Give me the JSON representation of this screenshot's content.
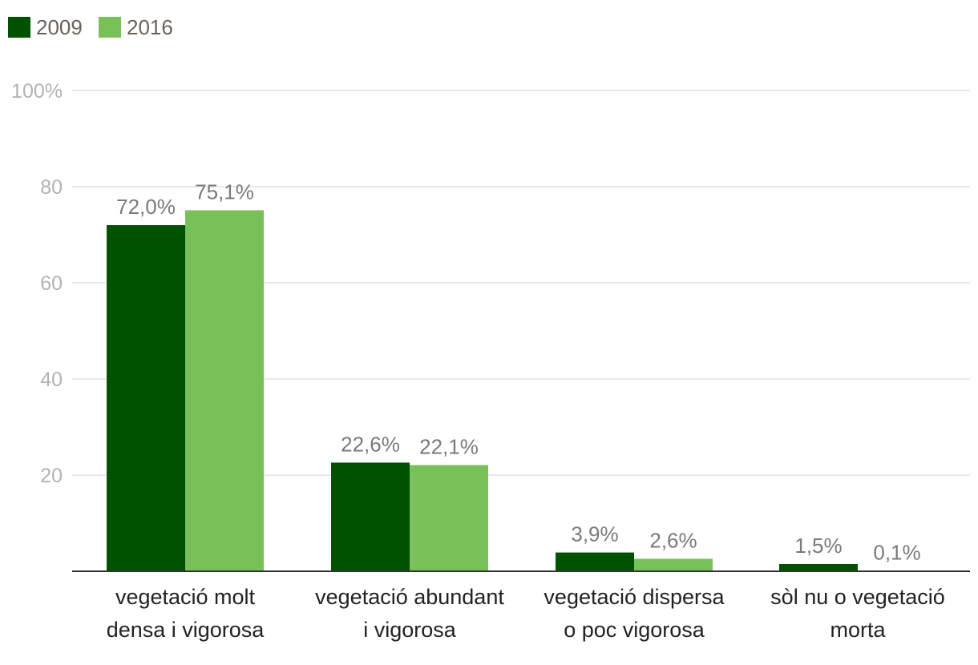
{
  "chart_data": {
    "type": "bar",
    "title": "",
    "xlabel": "",
    "ylabel": "",
    "ylim": [
      0,
      100
    ],
    "yticks": [
      {
        "value": 20,
        "label": "20"
      },
      {
        "value": 40,
        "label": "40"
      },
      {
        "value": 60,
        "label": "60"
      },
      {
        "value": 80,
        "label": "80"
      },
      {
        "value": 100,
        "label": "100%"
      }
    ],
    "grid": true,
    "legend_position": "top-left",
    "categories": [
      [
        "vegetació molt",
        "densa i vigorosa"
      ],
      [
        "vegetació abundant",
        "i vigorosa"
      ],
      [
        "vegetació dispersa",
        "o poc vigorosa"
      ],
      [
        "sòl nu o vegetació",
        "morta"
      ]
    ],
    "series": [
      {
        "name": "2009",
        "color": "#005200",
        "values": [
          72.0,
          22.6,
          3.9,
          1.5
        ],
        "labels": [
          "72,0%",
          "22,6%",
          "3,9%",
          "1,5%"
        ]
      },
      {
        "name": "2016",
        "color": "#78c159",
        "values": [
          75.1,
          22.1,
          2.6,
          0.1
        ],
        "labels": [
          "75,1%",
          "22,1%",
          "2,6%",
          "0,1%"
        ]
      }
    ]
  }
}
